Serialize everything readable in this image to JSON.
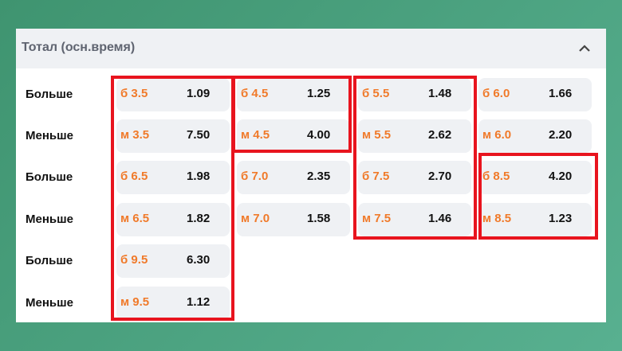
{
  "header": {
    "title": "Тотал (осн.время)",
    "collapse_icon": "chevron-up-icon"
  },
  "rows": [
    {
      "label": "Больше",
      "cells": [
        {
          "line": "б 3.5",
          "odd": "1.09"
        },
        {
          "line": "б 4.5",
          "odd": "1.25"
        },
        {
          "line": "б 5.5",
          "odd": "1.48"
        },
        {
          "line": "б 6.0",
          "odd": "1.66"
        }
      ]
    },
    {
      "label": "Меньше",
      "cells": [
        {
          "line": "м 3.5",
          "odd": "7.50"
        },
        {
          "line": "м 4.5",
          "odd": "4.00"
        },
        {
          "line": "м 5.5",
          "odd": "2.62"
        },
        {
          "line": "м 6.0",
          "odd": "2.20"
        }
      ]
    },
    {
      "label": "Больше",
      "cells": [
        {
          "line": "б 6.5",
          "odd": "1.98"
        },
        {
          "line": "б 7.0",
          "odd": "2.35"
        },
        {
          "line": "б 7.5",
          "odd": "2.70"
        },
        {
          "line": "б 8.5",
          "odd": "4.20"
        }
      ]
    },
    {
      "label": "Меньше",
      "cells": [
        {
          "line": "м 6.5",
          "odd": "1.82"
        },
        {
          "line": "м 7.0",
          "odd": "1.58"
        },
        {
          "line": "м 7.5",
          "odd": "1.46"
        },
        {
          "line": "м 8.5",
          "odd": "1.23"
        }
      ]
    },
    {
      "label": "Больше",
      "cells": [
        {
          "line": "б 9.5",
          "odd": "6.30"
        }
      ]
    },
    {
      "label": "Меньше",
      "cells": [
        {
          "line": "м 9.5",
          "odd": "1.12"
        }
      ]
    }
  ],
  "colors": {
    "line": "#f07a2a",
    "highlight": "#e8141e",
    "cell_bg": "#eff1f4"
  }
}
